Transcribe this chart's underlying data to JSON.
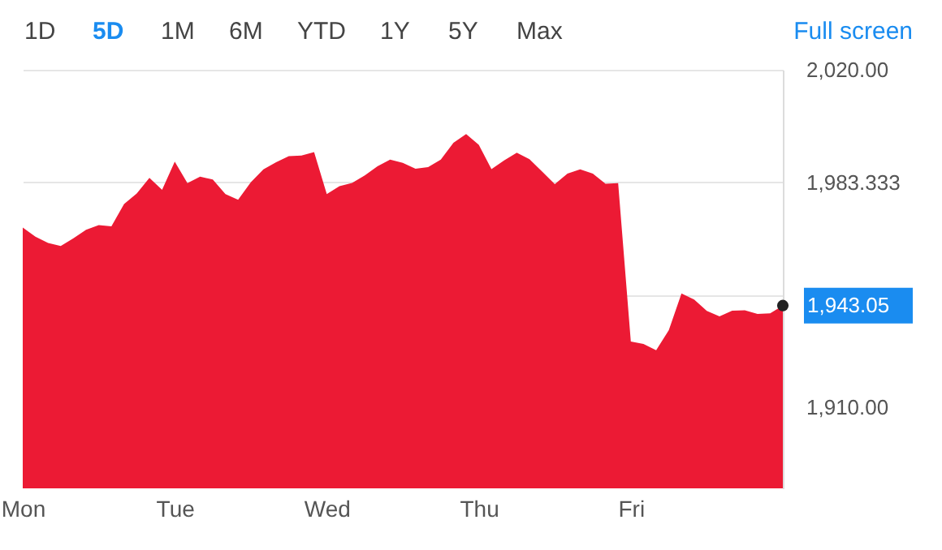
{
  "chart_data": {
    "type": "area",
    "categories": [
      "Mon",
      null,
      null,
      null,
      null,
      null,
      null,
      null,
      null,
      null,
      null,
      null,
      "Tue",
      null,
      null,
      null,
      null,
      null,
      null,
      null,
      null,
      null,
      null,
      null,
      "Wed",
      null,
      null,
      null,
      null,
      null,
      null,
      null,
      null,
      null,
      null,
      null,
      "Thu",
      null,
      null,
      null,
      null,
      null,
      null,
      null,
      null,
      null,
      null,
      null,
      "Fri",
      null,
      null,
      null,
      null,
      null,
      null,
      null,
      null,
      null,
      null,
      null,
      null
    ],
    "series": [
      {
        "color": "#ec1a34",
        "values": [
          1968.5,
          1965.5,
          1963.5,
          1962.5,
          1965,
          1967.8,
          1969.3,
          1968.9,
          1976.2,
          1979.6,
          1984.7,
          1980.8,
          1990,
          1983,
          1985.1,
          1984.2,
          1979.4,
          1977.6,
          1983.3,
          1987.5,
          1989.8,
          1991.8,
          1992,
          1993.1,
          1979.4,
          1982,
          1983.1,
          1985.5,
          1988.5,
          1990.7,
          1989.6,
          1987.7,
          1988.2,
          1990.7,
          1996.2,
          1999,
          1995.5,
          1987.6,
          1990.4,
          1992.9,
          1990.8,
          1986.8,
          1982.7,
          1986.1,
          1987.5,
          1986.1,
          1982.8,
          1983,
          1931.3,
          1930.5,
          1928.5,
          1935,
          1947,
          1945,
          1941.3,
          1939.5,
          1941.4,
          1941.5,
          1940.3,
          1940.5,
          1943.05
        ]
      },
      {
        "type": "scatter",
        "marker": "circle",
        "color": "#222222",
        "values": [
          null,
          null,
          null,
          null,
          null,
          null,
          null,
          null,
          null,
          null,
          null,
          null,
          null,
          null,
          null,
          null,
          null,
          null,
          null,
          null,
          null,
          null,
          null,
          null,
          null,
          null,
          null,
          null,
          null,
          null,
          null,
          null,
          null,
          null,
          null,
          null,
          null,
          null,
          null,
          null,
          null,
          null,
          null,
          null,
          null,
          null,
          null,
          null,
          null,
          null,
          null,
          null,
          null,
          null,
          null,
          null,
          null,
          null,
          null,
          null,
          1943.05
        ]
      }
    ],
    "ylim": [
      1883.4,
      2020
    ],
    "yticks": [
      {
        "value": 1910,
        "label": "1,910.00"
      },
      {
        "value": 1946.667,
        "label": null
      },
      {
        "value": 1983.333,
        "label": "1,983.333"
      },
      {
        "value": 2020,
        "label": "2,020.00"
      }
    ],
    "grid": "y",
    "annotations": [
      "1D",
      "5D",
      "1M",
      "6M",
      "YTD",
      "1Y",
      "5Y",
      "Max",
      "Full screen",
      "1,943.05"
    ]
  }
}
